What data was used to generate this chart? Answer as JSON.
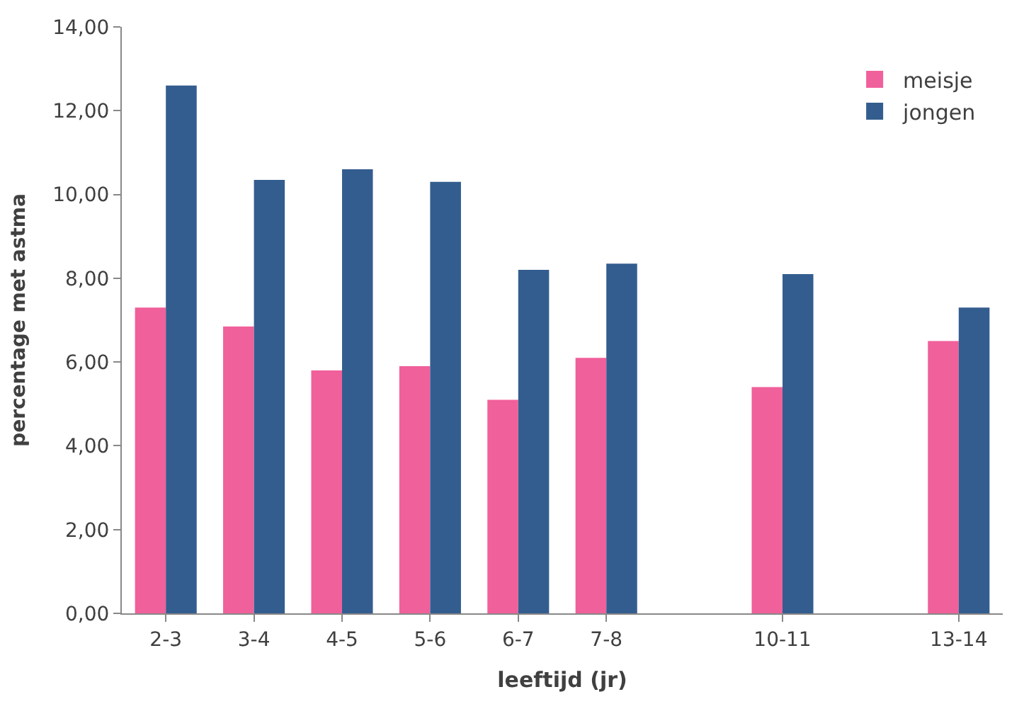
{
  "chart_data": {
    "type": "bar",
    "xlabel": "leeftijd (jr)",
    "ylabel": "percentage met astma",
    "categories": [
      "2-3",
      "3-4",
      "4-5",
      "5-6",
      "6-7",
      "7-8",
      null,
      "10-11",
      null,
      "13-14"
    ],
    "series": [
      {
        "name": "meisje",
        "color": "#f0609a",
        "values": [
          7.3,
          6.85,
          5.8,
          5.9,
          5.1,
          6.1,
          null,
          5.4,
          null,
          6.5
        ]
      },
      {
        "name": "jongen",
        "color": "#345d8f",
        "values": [
          12.6,
          10.35,
          10.6,
          10.3,
          8.2,
          8.35,
          null,
          8.1,
          null,
          7.3
        ]
      }
    ],
    "ylim": [
      0,
      14
    ],
    "yticks": [
      {
        "value": 0,
        "label": "0,00"
      },
      {
        "value": 2,
        "label": "2,00"
      },
      {
        "value": 4,
        "label": "4,00"
      },
      {
        "value": 6,
        "label": "6,00"
      },
      {
        "value": 8,
        "label": "8,00"
      },
      {
        "value": 10,
        "label": "10,00"
      },
      {
        "value": 12,
        "label": "12,00"
      },
      {
        "value": 14,
        "label": "14,00"
      }
    ],
    "legend": "top right"
  }
}
